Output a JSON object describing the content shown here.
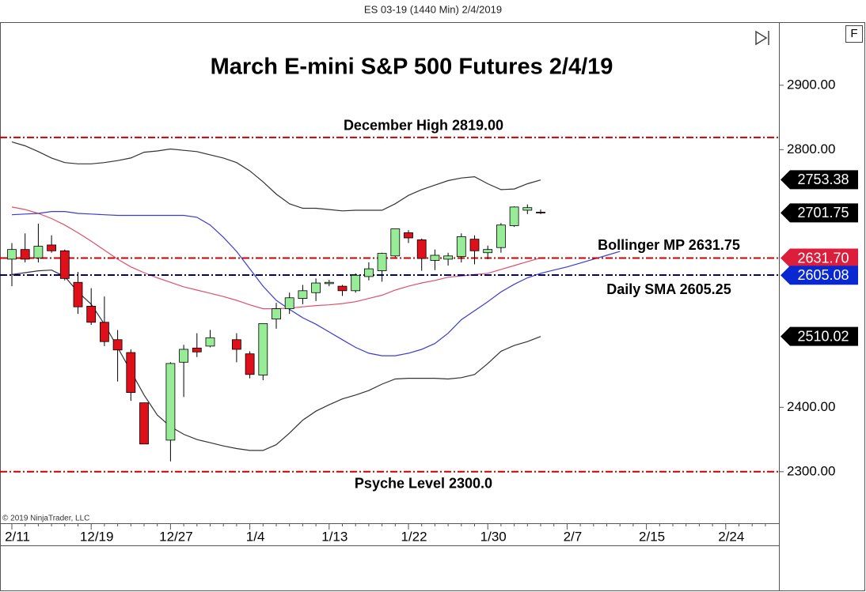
{
  "chart_data": {
    "type": "candlestick",
    "header": "ES 03-19 (1440 Min)  2/4/2019",
    "title": "March E-mini S&P 500 Futures 2/4/19",
    "credit": "© 2019 NinjaTrader, LLC",
    "button_label": "F",
    "categories": [
      "2/11",
      null,
      null,
      null,
      null,
      null,
      "12/19",
      null,
      null,
      null,
      null,
      null,
      "12/27",
      null,
      null,
      null,
      null,
      null,
      "1/4",
      null,
      null,
      null,
      null,
      null,
      "1/13",
      null,
      null,
      null,
      null,
      null,
      "1/22",
      null,
      null,
      null,
      null,
      null,
      "1/30",
      null,
      null,
      null,
      null,
      null,
      "2/7",
      null,
      null,
      null,
      null,
      null,
      "2/15",
      null,
      null,
      null,
      null,
      null,
      "2/24",
      null,
      null,
      null
    ],
    "open": [
      2630,
      2645,
      2632,
      2652,
      2643,
      2594,
      2557,
      2532,
      2505,
      2485,
      2407,
      null,
      2349,
      2470,
      2492,
      2495,
      null,
      2505,
      2483,
      2450,
      2537,
      2553,
      2569,
      2578,
      2592,
      2588,
      2581,
      2603,
      2612,
      2635,
      2671,
      2660,
      2628,
      2630,
      2634,
      2661,
      2640,
      2648,
      2682,
      2706,
      2703,
      null,
      null,
      null,
      null,
      null,
      null,
      null,
      null,
      null,
      null,
      null,
      null,
      null,
      null,
      null,
      null,
      null
    ],
    "high": [
      2655,
      2670,
      2685,
      2667,
      2645,
      2610,
      2585,
      2572,
      2520,
      2490,
      2407,
      null,
      2470,
      2497,
      2515,
      2520,
      null,
      2515,
      2487,
      2530,
      2562,
      2578,
      2590,
      2600,
      2598,
      2590,
      2608,
      2625,
      2640,
      2677,
      2675,
      2662,
      2645,
      2640,
      2670,
      2667,
      2651,
      2686,
      2712,
      2715,
      2707,
      null,
      null,
      null,
      null,
      null,
      null,
      null,
      null,
      null,
      null,
      null,
      null,
      null,
      null,
      null,
      null,
      null
    ],
    "low": [
      2588,
      2625,
      2625,
      2640,
      2597,
      2545,
      2528,
      2495,
      2440,
      2410,
      2343,
      null,
      2316,
      2416,
      2478,
      2493,
      null,
      2470,
      2445,
      2442,
      2522,
      2545,
      2560,
      2565,
      2588,
      2573,
      2578,
      2597,
      2595,
      2633,
      2655,
      2612,
      2613,
      2620,
      2625,
      2622,
      2630,
      2640,
      2680,
      2700,
      2700,
      null,
      null,
      null,
      null,
      null,
      null,
      null,
      null,
      null,
      null,
      null,
      null,
      null,
      null,
      null,
      null,
      null
    ],
    "close": [
      2645,
      2630,
      2650,
      2643,
      2600,
      2556,
      2532,
      2502,
      2489,
      2423,
      2343,
      null,
      2468,
      2490,
      2486,
      2508,
      null,
      2490,
      2451,
      2530,
      2553,
      2570,
      2581,
      2593,
      2594,
      2581,
      2605,
      2615,
      2639,
      2677,
      2663,
      2631,
      2636,
      2635,
      2665,
      2643,
      2645,
      2683,
      2711,
      2710,
      2702,
      null,
      null,
      null,
      null,
      null,
      null,
      null,
      null,
      null,
      null,
      null,
      null,
      null,
      null,
      null,
      null,
      null
    ],
    "up_color": "#98ec98",
    "down_color": "#e0101a",
    "lines": [
      {
        "color": "#333333",
        "values": [
          2812,
          2806,
          2797,
          2787,
          2780,
          2778,
          2778,
          2780,
          2783,
          2787,
          2796,
          2798,
          2801,
          2799,
          2797,
          2792,
          2787,
          2780,
          2767,
          2750,
          2731,
          2716,
          2709,
          2709,
          2707,
          2705,
          2706,
          2706,
          2706,
          2716,
          2729,
          2738,
          2745,
          2752,
          2756,
          2758,
          2747,
          2738,
          2739,
          2747,
          2753,
          null,
          null,
          null,
          null,
          null,
          null,
          null,
          null,
          null,
          null,
          null,
          null,
          null,
          null,
          null,
          null,
          null
        ]
      },
      {
        "color": "#333333",
        "values": [
          2606,
          2609,
          2612,
          2613,
          2603,
          2579,
          2560,
          2529,
          2493,
          2456,
          2419,
          2388,
          2370,
          2358,
          2350,
          2345,
          2340,
          2336,
          2333,
          2333,
          2342,
          2360,
          2380,
          2394,
          2404,
          2413,
          2419,
          2426,
          2436,
          2444,
          2445,
          2445,
          2445,
          2444,
          2446,
          2451,
          2468,
          2487,
          2496,
          2502,
          2510,
          null,
          null,
          null,
          null,
          null,
          null,
          null,
          null,
          null,
          null,
          null,
          null,
          null,
          null,
          null,
          null,
          null
        ]
      },
      {
        "color": "#e0506a",
        "values": [
          2711,
          2707,
          2701,
          2693,
          2683,
          2671,
          2658,
          2644,
          2630,
          2618,
          2609,
          2601,
          2594,
          2587,
          2582,
          2577,
          2572,
          2566,
          2559,
          2553,
          2553,
          2554,
          2556,
          2558,
          2559,
          2561,
          2564,
          2569,
          2574,
          2582,
          2588,
          2593,
          2597,
          2602,
          2604,
          2606,
          2608,
          2614,
          2620,
          2626,
          2632,
          null,
          null,
          null,
          null,
          null,
          null,
          null,
          null,
          null,
          null,
          null,
          null,
          null,
          null,
          null,
          null,
          null
        ]
      },
      {
        "color": "#3b3bd0",
        "values": [
          2699,
          2700,
          2701,
          2704,
          2704,
          2701,
          2700,
          2699,
          2698,
          2698,
          2698,
          2698,
          2698,
          2698,
          2695,
          2683,
          2664,
          2642,
          2615,
          2588,
          2566,
          2552,
          2539,
          2529,
          2517,
          2505,
          2493,
          2484,
          2480,
          2480,
          2484,
          2490,
          2499,
          2515,
          2536,
          2550,
          2564,
          2579,
          2591,
          2601,
          2608,
          2613,
          2618,
          2624,
          2630,
          2636,
          2642,
          null,
          null,
          null,
          null,
          null,
          null,
          null,
          null,
          null,
          null,
          null
        ]
      }
    ],
    "levels": [
      {
        "value": 2819,
        "label": "December High 2819.00",
        "color": "#cc0000"
      },
      {
        "value": 2631.75,
        "label": "Bollinger MP 2631.75",
        "color": "#cc0000"
      },
      {
        "value": 2605.25,
        "label": "Daily SMA 2605.25",
        "color": "#000080"
      },
      {
        "value": 2300,
        "label": "Psyche Level 2300.0",
        "color": "#cc0000"
      }
    ],
    "price_markers": [
      {
        "value": 2753.38,
        "label": "2753.38",
        "color": "#000000"
      },
      {
        "value": 2701.75,
        "label": "2701.75",
        "color": "#000000"
      },
      {
        "value": 2631.7,
        "label": "2631.70",
        "color": "#dc1e3c"
      },
      {
        "value": 2605.08,
        "label": "2605.08",
        "color": "#0a28d2"
      },
      {
        "value": 2510.02,
        "label": "2510.02",
        "color": "#000000"
      }
    ],
    "ylim": [
      2220,
      2998
    ],
    "yticks": [
      {
        "value": 2300,
        "label": "2300.00"
      },
      {
        "value": 2400,
        "label": "2400.00"
      },
      {
        "value": 2800,
        "label": "2800.00"
      },
      {
        "value": 2900,
        "label": "2900.00"
      }
    ]
  }
}
